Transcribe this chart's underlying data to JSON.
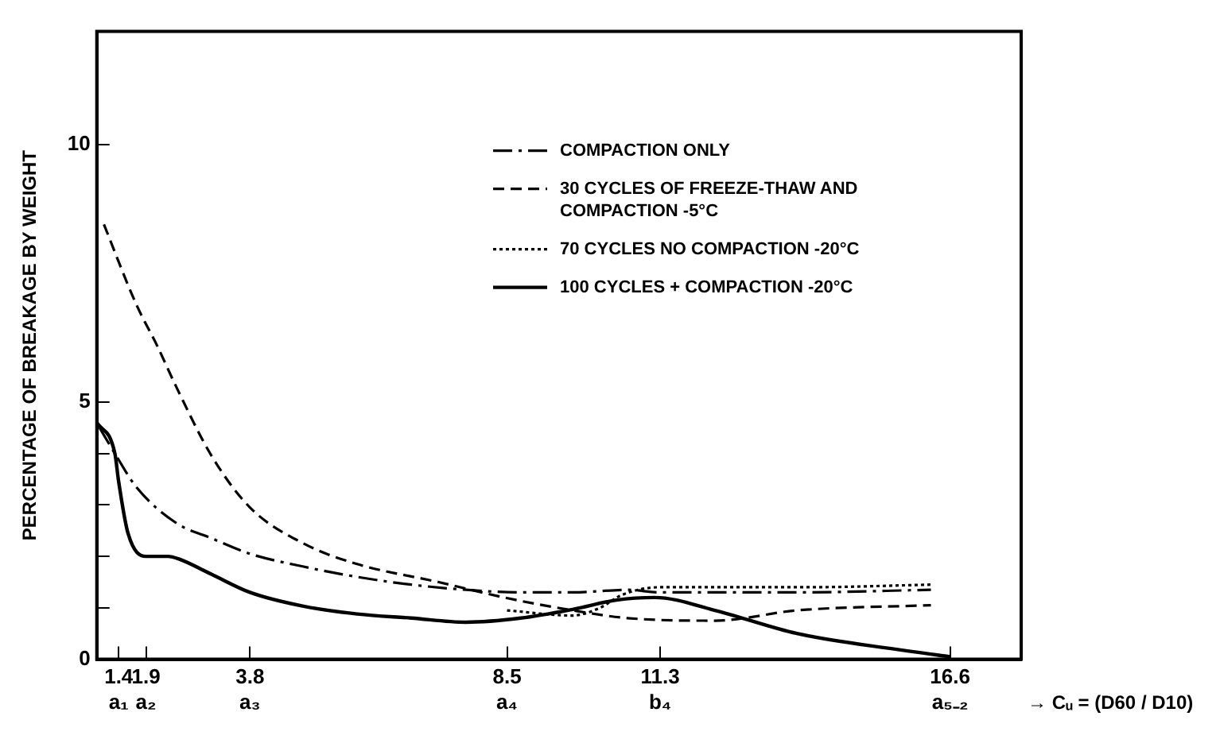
{
  "chart_data": {
    "type": "line",
    "xlabel": "→ Cᵤ = (D60 / D10)",
    "ylabel": "PERCENTAGE OF BREAKAGE BY WEIGHT",
    "xlim": [
      1.0,
      17.9
    ],
    "xticks": [
      {
        "value": 1.4,
        "label": "1.4\na₁"
      },
      {
        "value": 1.9,
        "label": "1.9\na₂"
      },
      {
        "value": 3.8,
        "label": "3.8\na₃"
      },
      {
        "value": 8.5,
        "label": "8.5\na₄"
      },
      {
        "value": 11.3,
        "label": "11.3\nb₄"
      },
      {
        "value": 16.6,
        "label": "16.6\na₅₋₂"
      }
    ],
    "ylim": [
      0,
      12.2
    ],
    "yticks": [
      0,
      {
        "value": 1,
        "label": null
      },
      {
        "value": 2,
        "label": null
      },
      {
        "value": 3,
        "label": null
      },
      {
        "value": 4,
        "label": null
      },
      5,
      10
    ],
    "grid": false,
    "legend": "top right",
    "marker": "none",
    "series": [
      {
        "name": "COMPACTION ONLY",
        "color": "#000000",
        "line_style": "dashdot",
        "x": [
          1.05,
          1.33,
          1.72,
          2.45,
          3.1,
          3.8,
          4.78,
          5.76,
          6.75,
          7.75,
          8.75,
          9.7,
          10.7,
          11.3,
          13.8,
          16.25
        ],
        "values": [
          4.5,
          4.0,
          3.35,
          2.65,
          2.35,
          2.05,
          1.8,
          1.6,
          1.45,
          1.35,
          1.3,
          1.3,
          1.35,
          1.3,
          1.3,
          1.35
        ]
      },
      {
        "name": "30 CYCLES OF FREEZE-THAW AND COMPACTION -5°C",
        "color": "#000000",
        "line_style": "dashed",
        "x": [
          1.13,
          1.72,
          2.1,
          2.45,
          3.1,
          3.8,
          4.78,
          5.76,
          7.25,
          8.45,
          9.7,
          10.7,
          12.3,
          13.8,
          16.25
        ],
        "values": [
          8.45,
          6.9,
          6.1,
          5.3,
          3.95,
          2.95,
          2.25,
          1.85,
          1.5,
          1.2,
          0.95,
          0.8,
          0.75,
          0.95,
          1.05
        ]
      },
      {
        "name": "70 CYCLES NO COMPACTION -20°C",
        "color": "#000000",
        "line_style": "dotted",
        "x": [
          8.5,
          9.7,
          10.2,
          10.6,
          11.3,
          12.5,
          14.0,
          16.25
        ],
        "values": [
          0.95,
          0.85,
          1.0,
          1.25,
          1.4,
          1.4,
          1.4,
          1.45
        ]
      },
      {
        "name": "100 CYCLES + COMPACTION -20°C",
        "color": "#000000",
        "line_style": "solid",
        "x": [
          1.0,
          1.33,
          1.4,
          1.57,
          1.9,
          2.3,
          2.5,
          3.1,
          3.8,
          4.78,
          5.76,
          6.75,
          7.75,
          8.75,
          9.7,
          10.5,
          11.2,
          12.3,
          13.8,
          15.9,
          16.6
        ],
        "values": [
          4.6,
          4.0,
          3.45,
          2.45,
          2.0,
          2.0,
          1.95,
          1.65,
          1.3,
          1.03,
          0.88,
          0.8,
          0.72,
          0.8,
          0.97,
          1.15,
          1.2,
          0.95,
          0.5,
          0.15,
          0.05
        ]
      }
    ]
  }
}
